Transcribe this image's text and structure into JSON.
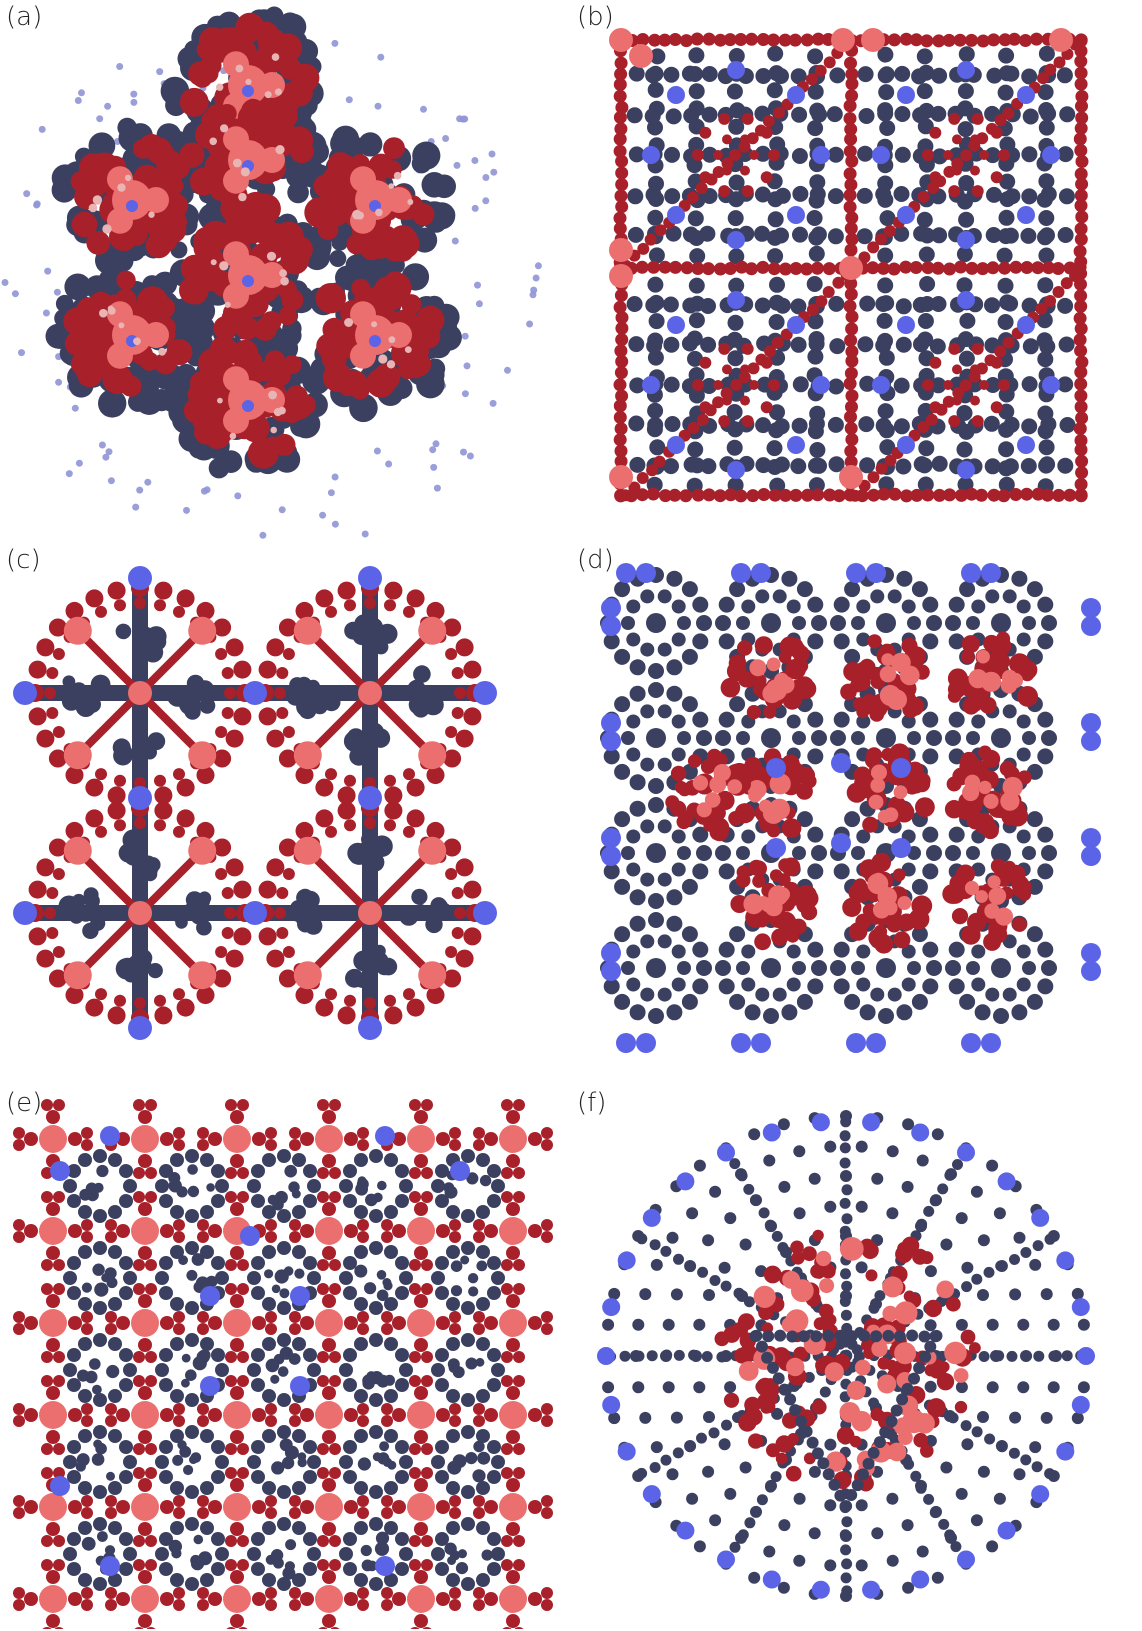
{
  "panels": [
    {
      "id": "a",
      "label": "(a)"
    },
    {
      "id": "b",
      "label": "(b)"
    },
    {
      "id": "c",
      "label": "(c)"
    },
    {
      "id": "d",
      "label": "(d)"
    },
    {
      "id": "e",
      "label": "(e)"
    },
    {
      "id": "f",
      "label": "(f)"
    }
  ],
  "colors": {
    "dark_red": "#a8202a",
    "light_red": "#ec6f70",
    "navy": "#3c4060",
    "blue": "#5b63e6",
    "pale_blue": "#8f95d6"
  }
}
